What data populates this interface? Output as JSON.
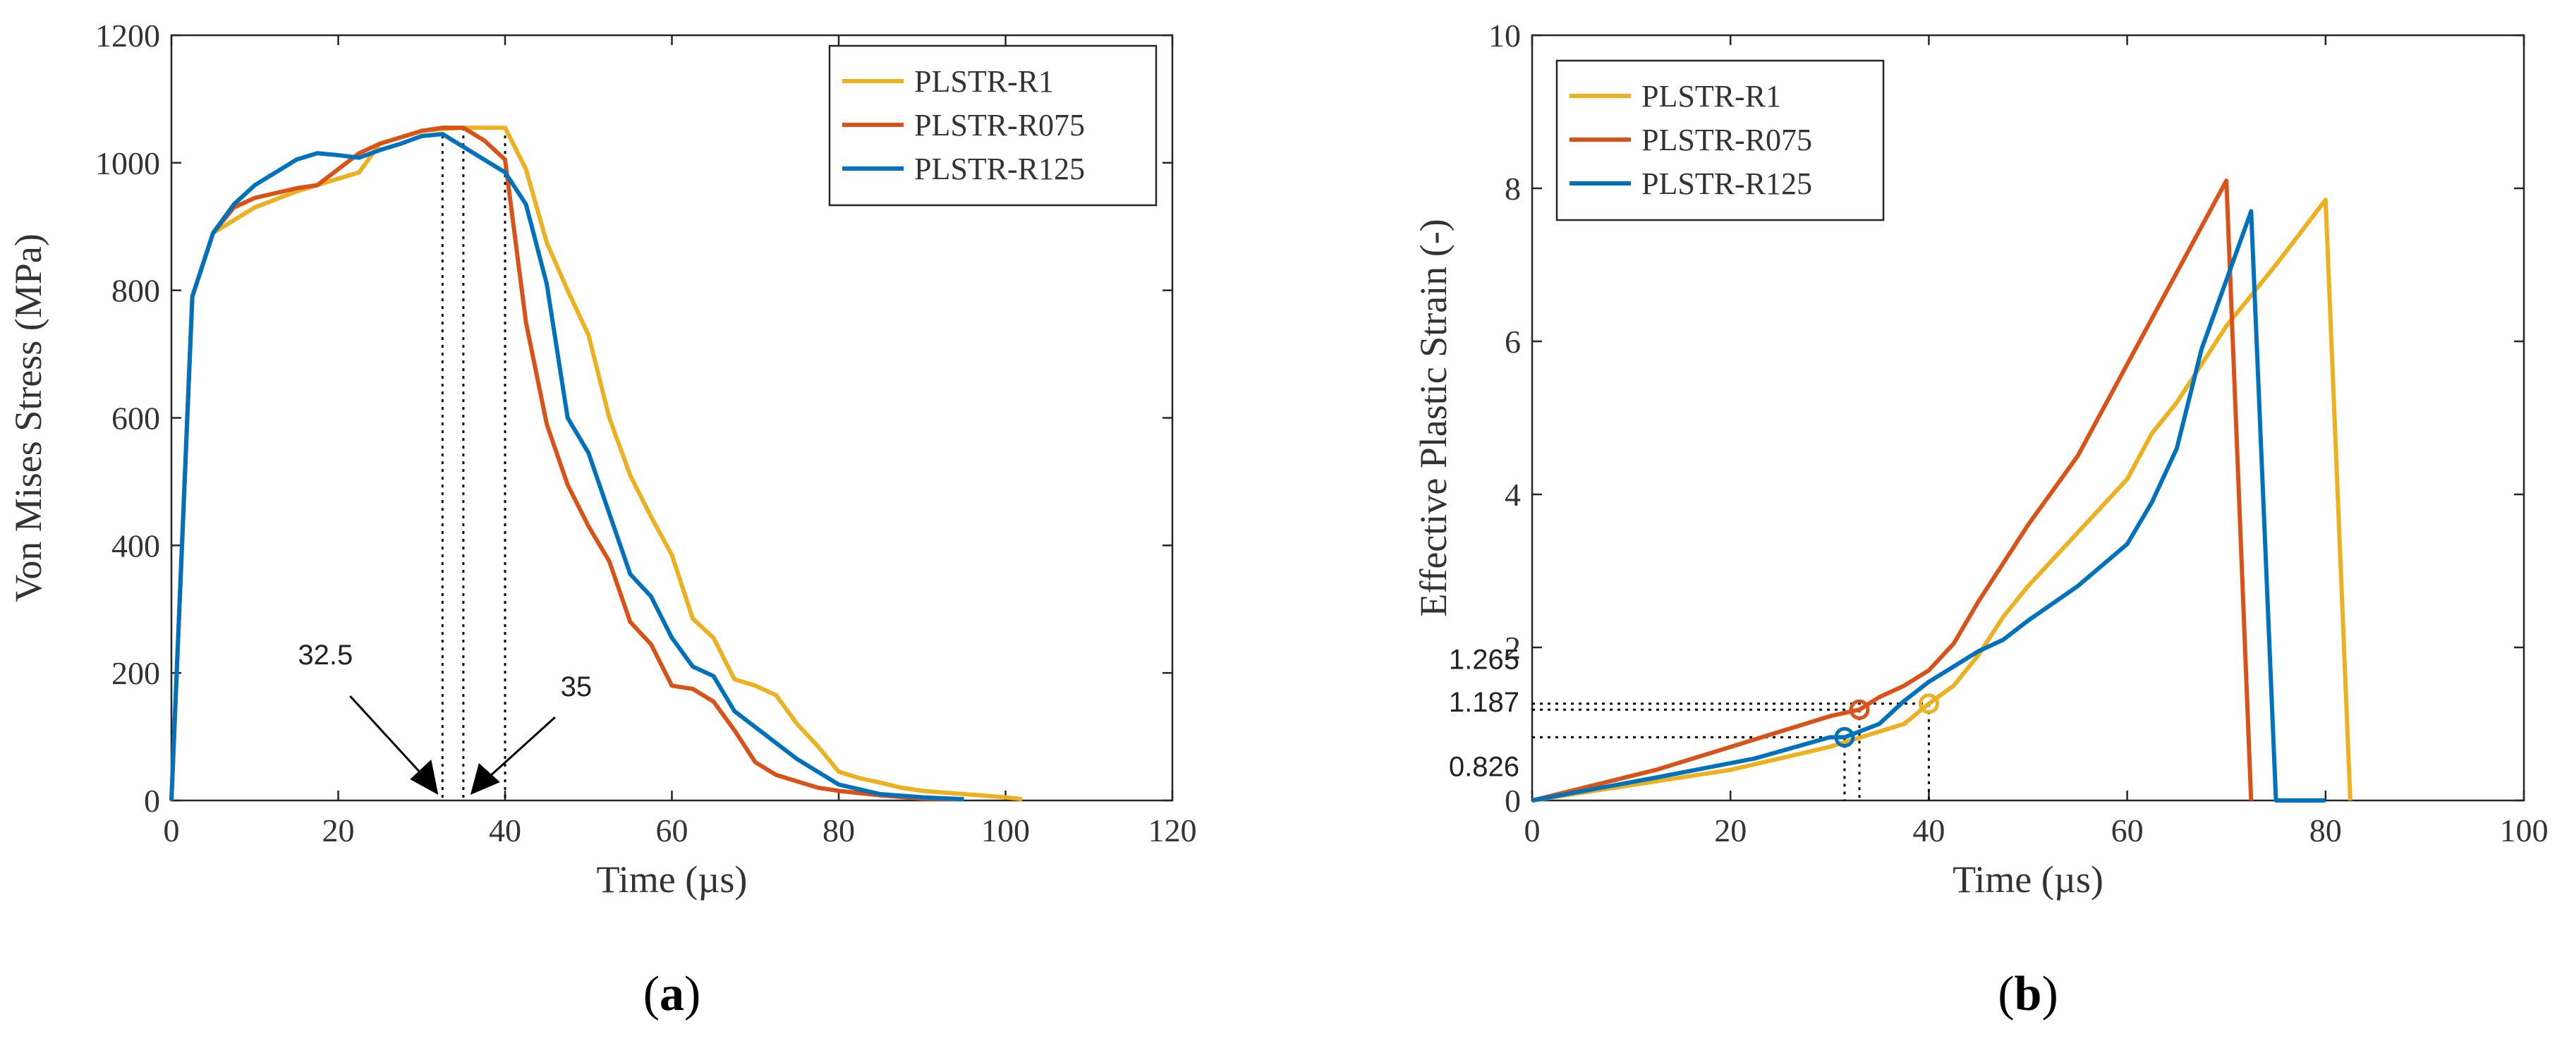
{
  "colors": {
    "R1": "#EDB120",
    "R075": "#D95319",
    "R125": "#0072BD",
    "axis": "#262626",
    "ref": "#000000"
  },
  "chart_data": [
    {
      "type": "line",
      "panel_label": "a",
      "xlabel": "Time (µs)",
      "ylabel": "Von Mises Stress (MPa)",
      "xlim": [
        0,
        120
      ],
      "ylim": [
        0,
        1200
      ],
      "xticks": [
        0,
        20,
        40,
        60,
        80,
        100,
        120
      ],
      "yticks": [
        0,
        200,
        400,
        600,
        800,
        1000,
        1200
      ],
      "legend_position": "top-right",
      "series": [
        {
          "name": "PLSTR-R1",
          "color_key": "R1",
          "x": [
            0,
            2.5,
            5,
            7.5,
            10,
            15,
            20,
            22.5,
            25,
            27.5,
            30,
            32.5,
            35,
            37.5,
            40,
            42.5,
            45,
            47.5,
            50,
            52.5,
            55,
            57.5,
            60,
            62.5,
            65,
            67.5,
            70,
            72.5,
            75,
            77.5,
            80,
            82.5,
            85,
            87.5,
            90,
            95,
            100,
            102
          ],
          "y": [
            0,
            790,
            890,
            910,
            930,
            955,
            975,
            985,
            1030,
            1040,
            1050,
            1053,
            1055,
            1055,
            1055,
            990,
            875,
            800,
            730,
            600,
            510,
            445,
            385,
            285,
            255,
            190,
            180,
            165,
            120,
            85,
            45,
            35,
            28,
            20,
            15,
            10,
            5,
            2
          ]
        },
        {
          "name": "PLSTR-R075",
          "color_key": "R075",
          "x": [
            0,
            2.5,
            5,
            7.5,
            10,
            15,
            17.5,
            20,
            22.5,
            25,
            27.5,
            30,
            32.5,
            35,
            37.5,
            40,
            42.5,
            45,
            47.5,
            50,
            52.5,
            55,
            57.5,
            60,
            62.5,
            65,
            67.5,
            70,
            72.5,
            75,
            77.5,
            80,
            85,
            90,
            95
          ],
          "y": [
            0,
            790,
            890,
            930,
            945,
            960,
            965,
            990,
            1015,
            1030,
            1040,
            1050,
            1055,
            1055,
            1035,
            1005,
            750,
            590,
            495,
            430,
            375,
            280,
            245,
            180,
            175,
            155,
            110,
            60,
            40,
            30,
            20,
            15,
            8,
            3,
            2
          ]
        },
        {
          "name": "PLSTR-R125",
          "color_key": "R125",
          "x": [
            0,
            2.5,
            5,
            7.5,
            10,
            12.5,
            15,
            17.5,
            20,
            22.5,
            25,
            27.5,
            30,
            32.5,
            35,
            37.5,
            40,
            42.5,
            45,
            47.5,
            50,
            52.5,
            55,
            57.5,
            60,
            62.5,
            65,
            67.5,
            70,
            72.5,
            75,
            77.5,
            80,
            85,
            90,
            95
          ],
          "y": [
            0,
            790,
            890,
            935,
            965,
            985,
            1005,
            1015,
            1012,
            1008,
            1020,
            1030,
            1042,
            1045,
            1025,
            1005,
            985,
            935,
            810,
            600,
            545,
            450,
            355,
            320,
            255,
            210,
            195,
            140,
            115,
            90,
            65,
            45,
            25,
            10,
            5,
            2
          ]
        }
      ],
      "reference_lines_x": [
        32.5,
        35,
        40
      ],
      "annotations": [
        {
          "text": "32.5",
          "x": 32.5
        },
        {
          "text": "35",
          "x": 35
        }
      ]
    },
    {
      "type": "line",
      "panel_label": "b",
      "xlabel": "Time (µs)",
      "ylabel": "Effective Plastic Strain (-)",
      "xlim": [
        0,
        100
      ],
      "ylim": [
        0,
        10
      ],
      "xticks": [
        0,
        20,
        40,
        60,
        80,
        100
      ],
      "yticks": [
        0,
        2,
        4,
        6,
        8,
        10
      ],
      "legend_position": "top-left",
      "series": [
        {
          "name": "PLSTR-R1",
          "color_key": "R1",
          "x": [
            0,
            10,
            20,
            30,
            37.5,
            40,
            42.5,
            45,
            47.5,
            50,
            55,
            60,
            62.5,
            65,
            70,
            75,
            80,
            82.5
          ],
          "y": [
            0,
            0.2,
            0.4,
            0.7,
            1.0,
            1.265,
            1.5,
            1.9,
            2.4,
            2.8,
            3.5,
            4.2,
            4.8,
            5.2,
            6.2,
            7.0,
            7.85,
            0
          ]
        },
        {
          "name": "PLSTR-R075",
          "color_key": "R075",
          "x": [
            0,
            12.5,
            22.5,
            30,
            33,
            35,
            37.5,
            40,
            42.5,
            45,
            50,
            55,
            60,
            65,
            70,
            72.5
          ],
          "y": [
            0,
            0.4,
            0.8,
            1.1,
            1.187,
            1.35,
            1.5,
            1.7,
            2.05,
            2.6,
            3.6,
            4.5,
            5.7,
            6.9,
            8.1,
            0
          ]
        },
        {
          "name": "PLSTR-R125",
          "color_key": "R125",
          "x": [
            0,
            12.5,
            22.5,
            30,
            31.5,
            35,
            37.5,
            40,
            42.5,
            45,
            47.5,
            50,
            55,
            60,
            62.5,
            65,
            67.5,
            70,
            72.5,
            75,
            80
          ],
          "y": [
            0,
            0.3,
            0.55,
            0.826,
            0.826,
            1.0,
            1.3,
            1.55,
            1.75,
            1.95,
            2.1,
            2.35,
            2.8,
            3.35,
            3.9,
            4.6,
            5.9,
            6.8,
            7.7,
            0,
            0
          ]
        }
      ],
      "highlight_points": [
        {
          "color_key": "R125",
          "x": 31.5,
          "y": 0.826,
          "label": "0.826"
        },
        {
          "color_key": "R075",
          "x": 33,
          "y": 1.187,
          "label": "1.187"
        },
        {
          "color_key": "R1",
          "x": 40,
          "y": 1.265,
          "label": "1.265"
        }
      ]
    }
  ]
}
